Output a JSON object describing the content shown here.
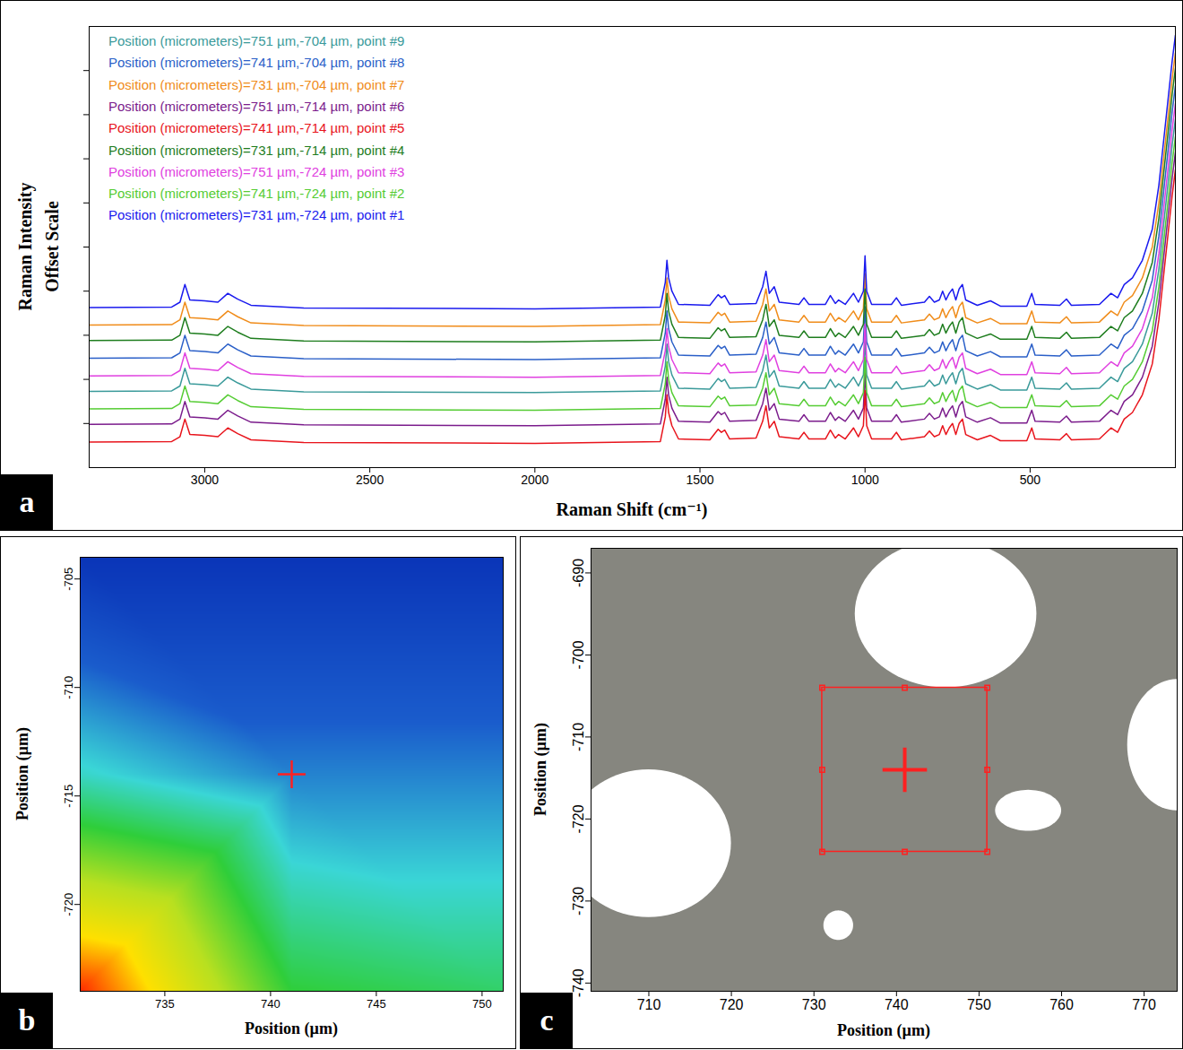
{
  "chart_data": [
    {
      "type": "line",
      "panel": "a",
      "xlabel": "Raman Shift (cm⁻¹)",
      "ylabel": "Raman Intensity\nOffset Scale",
      "xlim": [
        3350,
        60
      ],
      "xticks": [
        3000,
        2500,
        2000,
        1500,
        1000,
        500
      ],
      "ylim": [
        0,
        100
      ],
      "yticks": [
        10,
        20,
        30,
        40,
        50,
        60,
        70,
        80,
        90
      ],
      "tick_labels": "x",
      "legend": "top-left",
      "x": [
        3350,
        3100,
        3075,
        3060,
        3045,
        3000,
        2960,
        2930,
        2900,
        2860,
        2700,
        2000,
        1620,
        1605,
        1600,
        1595,
        1585,
        1565,
        1470,
        1445,
        1435,
        1425,
        1410,
        1330,
        1310,
        1300,
        1290,
        1275,
        1260,
        1200,
        1185,
        1170,
        1120,
        1105,
        1090,
        1080,
        1060,
        1035,
        1020,
        1005,
        1000,
        995,
        980,
        920,
        905,
        890,
        820,
        805,
        790,
        775,
        765,
        755,
        745,
        735,
        725,
        715,
        705,
        695,
        660,
        620,
        590,
        510,
        495,
        485,
        410,
        390,
        375,
        290,
        255,
        235,
        215,
        190,
        160,
        130,
        110,
        90,
        70,
        60
      ],
      "series": [
        {
          "name": "Position (micrometers)=751 µm,-704 µm, point #9",
          "color": "#3a9a9a",
          "values": [
            17.3,
            17.4,
            18.5,
            22.5,
            19,
            18.8,
            18.5,
            20.5,
            19.2,
            17.8,
            17.2,
            17,
            17.4,
            23,
            28,
            24,
            21,
            18,
            17.8,
            20.2,
            19.5,
            20,
            18,
            18.2,
            22,
            25.5,
            20.5,
            22,
            18.5,
            18,
            19.5,
            18,
            18,
            20,
            18.2,
            19,
            18,
            20.5,
            18.5,
            21,
            29,
            21,
            18,
            18,
            19.5,
            17.8,
            18.5,
            19.8,
            18.5,
            19,
            21,
            19,
            20.5,
            21.5,
            19,
            21.5,
            22.5,
            19,
            17.8,
            18.8,
            17.6,
            17.6,
            20.5,
            18,
            17.8,
            19.2,
            17.8,
            18,
            20.5,
            19.5,
            22.5,
            24,
            28,
            35,
            45,
            59,
            73,
            79
          ]
        },
        {
          "name": "Position (micrometers)=741 µm,-704 µm, point #8",
          "color": "#2a5fc8",
          "values": [
            24.8,
            24.9,
            26,
            30,
            26.5,
            26.3,
            26,
            28,
            26.7,
            25.3,
            24.7,
            24.5,
            24.9,
            30.5,
            35.5,
            31.5,
            28.5,
            25.5,
            25.3,
            27.7,
            27,
            27.5,
            25.5,
            25.7,
            29.5,
            33,
            28,
            29.5,
            26,
            25.5,
            27,
            25.5,
            25.5,
            27.5,
            25.7,
            26.5,
            25.5,
            28,
            26,
            28.5,
            36.5,
            28.5,
            25.5,
            25.5,
            27,
            25.3,
            26,
            27.3,
            26,
            26.5,
            28.5,
            26.5,
            28,
            29,
            26.5,
            29,
            30,
            26.5,
            25.3,
            26.3,
            25.1,
            25.1,
            28,
            25.5,
            25.3,
            26.7,
            25.3,
            25.5,
            28,
            27,
            30,
            31.5,
            35.5,
            42.5,
            52.5,
            66.5,
            80.5,
            86.5
          ]
        },
        {
          "name": "Position (micrometers)=731 µm,-704 µm, point #7",
          "color": "#f08c1a",
          "values": [
            32.3,
            32.4,
            33.5,
            37.5,
            34,
            33.8,
            33.5,
            35.5,
            34.2,
            32.8,
            32.2,
            32,
            32.4,
            38,
            43,
            39,
            36,
            33,
            32.8,
            35.2,
            34.5,
            35,
            33,
            33.2,
            37,
            40.5,
            35.5,
            37,
            33.5,
            33,
            34.5,
            33,
            33,
            35,
            33.2,
            34,
            33,
            35.5,
            33.5,
            36,
            44,
            36,
            33,
            33,
            34.5,
            32.8,
            33.5,
            34.8,
            33.5,
            34,
            36,
            34,
            35.5,
            36.5,
            34,
            36.5,
            37.5,
            34,
            32.8,
            33.8,
            32.6,
            32.6,
            35.5,
            33,
            32.8,
            34.2,
            32.8,
            33,
            35.5,
            34.5,
            37.5,
            39,
            43,
            50,
            60,
            74,
            88,
            94
          ]
        },
        {
          "name": "Position (micrometers)=751 µm,-714 µm, point #6",
          "color": "#7b1c8c",
          "values": [
            9.8,
            9.9,
            11,
            15,
            11.5,
            11.3,
            11,
            13,
            11.7,
            10.3,
            9.7,
            9.5,
            9.9,
            15.5,
            20.5,
            16.5,
            13.5,
            10.5,
            10.3,
            12.7,
            12,
            12.5,
            10.5,
            10.7,
            14.5,
            18,
            13,
            14.5,
            11,
            10.5,
            12,
            10.5,
            10.5,
            12.5,
            10.7,
            11.5,
            10.5,
            13,
            11,
            13.5,
            21.5,
            13.5,
            10.5,
            10.5,
            12,
            10.3,
            11,
            12.3,
            11,
            11.5,
            13.5,
            11.5,
            13,
            14,
            11.5,
            14,
            15,
            11.5,
            10.3,
            11.3,
            10.1,
            10.1,
            13,
            10.5,
            10.3,
            11.7,
            10.3,
            10.5,
            13,
            12,
            15,
            16.5,
            20.5,
            27.5,
            37.5,
            51.5,
            65.5,
            71.5
          ]
        },
        {
          "name": "Position (micrometers)=741 µm,-714 µm, point #5",
          "color": "#e8141c",
          "values": [
            5.8,
            5.9,
            7,
            11,
            7.5,
            7.3,
            7,
            9,
            7.7,
            6.3,
            5.7,
            5.5,
            5.9,
            11.5,
            16.5,
            12.5,
            9.5,
            6.5,
            6.3,
            8.7,
            8,
            8.5,
            6.5,
            6.7,
            10.5,
            14,
            9,
            10.5,
            7,
            6.5,
            8,
            6.5,
            6.5,
            8.5,
            6.7,
            7.5,
            6.5,
            9,
            7,
            9.5,
            17.5,
            9.5,
            6.5,
            6.5,
            8,
            6.3,
            7,
            8.3,
            7,
            7.5,
            9.5,
            7.5,
            9,
            10,
            7.5,
            10,
            11,
            7.5,
            6.3,
            7.3,
            6.1,
            6.1,
            9,
            6.5,
            6.3,
            7.7,
            6.3,
            6.5,
            9,
            8,
            11,
            12.5,
            16.5,
            23.5,
            33.5,
            47.5,
            61.5,
            67.5
          ]
        },
        {
          "name": "Position (micrometers)=731 µm,-714 µm, point #4",
          "color": "#1e7d1e",
          "values": [
            28.8,
            28.9,
            30,
            34,
            30.5,
            30.3,
            30,
            32,
            30.7,
            29.3,
            28.7,
            28.5,
            28.9,
            34.5,
            39.5,
            35.5,
            32.5,
            29.5,
            29.3,
            31.7,
            31,
            31.5,
            29.5,
            29.7,
            33.5,
            37,
            32,
            33.5,
            30,
            29.5,
            31,
            29.5,
            29.5,
            31.5,
            29.7,
            30.5,
            29.5,
            32,
            30,
            32.5,
            40.5,
            32.5,
            29.5,
            29.5,
            31,
            29.3,
            30,
            31.3,
            30,
            30.5,
            32.5,
            30.5,
            32,
            33,
            30.5,
            33,
            34,
            30.5,
            29.3,
            30.3,
            29.1,
            29.1,
            32,
            29.5,
            29.3,
            30.7,
            29.3,
            29.5,
            32,
            31,
            34,
            35.5,
            39.5,
            46.5,
            56.5,
            70.5,
            84.5,
            90.5
          ]
        },
        {
          "name": "Position (micrometers)=751 µm,-724 µm, point #3",
          "color": "#e040e0",
          "values": [
            20.8,
            20.9,
            22,
            26,
            22.5,
            22.3,
            22,
            24,
            22.7,
            21.3,
            20.7,
            20.5,
            20.9,
            26.5,
            31.5,
            27.5,
            24.5,
            21.5,
            21.3,
            23.7,
            23,
            23.5,
            21.5,
            21.7,
            25.5,
            29,
            24,
            25.5,
            22,
            21.5,
            23,
            21.5,
            21.5,
            23.5,
            21.7,
            22.5,
            21.5,
            24,
            22,
            24.5,
            32.5,
            24.5,
            21.5,
            21.5,
            23,
            21.3,
            22,
            23.3,
            22,
            22.5,
            24.5,
            22.5,
            24,
            25,
            22.5,
            25,
            26,
            22.5,
            21.3,
            22.3,
            21.1,
            21.1,
            24,
            21.5,
            21.3,
            22.7,
            21.3,
            21.5,
            24,
            23,
            26,
            27.5,
            31.5,
            38.5,
            48.5,
            62.5,
            76.5,
            82.5
          ]
        },
        {
          "name": "Position (micrometers)=741 µm,-724 µm, point #2",
          "color": "#55cc33",
          "values": [
            13.3,
            13.4,
            14.5,
            18.5,
            15,
            14.8,
            14.5,
            16.5,
            15.2,
            13.8,
            13.2,
            13,
            13.4,
            19,
            24,
            20,
            17,
            14,
            13.8,
            16.2,
            15.5,
            16,
            14,
            14.2,
            18,
            21.5,
            16.5,
            18,
            14.5,
            14,
            15.5,
            14,
            14,
            16,
            14.2,
            15,
            14,
            16.5,
            14.5,
            17,
            25,
            17,
            14,
            14,
            15.5,
            13.8,
            14.5,
            15.8,
            14.5,
            15,
            17,
            15,
            16.5,
            17.5,
            15,
            17.5,
            18.5,
            15,
            13.8,
            14.8,
            13.6,
            13.6,
            16.5,
            14,
            13.8,
            15.2,
            13.8,
            14,
            16.5,
            15.5,
            18.5,
            20,
            24,
            31,
            41,
            55,
            69,
            75
          ]
        },
        {
          "name": "Position (micrometers)=731 µm,-724 µm, point #1",
          "color": "#1a1aee",
          "values": [
            36.3,
            36.4,
            37.5,
            41.5,
            38,
            37.8,
            37.5,
            39.5,
            38.2,
            36.8,
            36.2,
            36,
            36.4,
            42,
            47,
            43,
            40,
            37,
            36.8,
            39.2,
            38.5,
            39,
            37,
            37.2,
            41,
            44.5,
            39.5,
            41,
            37.5,
            37,
            38.5,
            37,
            37,
            39,
            37.2,
            38,
            37,
            39.5,
            37.5,
            40,
            48,
            40,
            37,
            37,
            38.5,
            36.8,
            37.5,
            38.8,
            37.5,
            38,
            40,
            38,
            39.5,
            40.5,
            38,
            40.5,
            41.5,
            38,
            36.8,
            37.8,
            36.6,
            36.6,
            39.5,
            37,
            36.8,
            38.2,
            36.8,
            37,
            39.5,
            38.5,
            41.5,
            43,
            47,
            54,
            64,
            78,
            92,
            98
          ]
        }
      ]
    },
    {
      "type": "heatmap",
      "panel": "b",
      "xlabel": "Position (µm)",
      "ylabel": "Position (µm)",
      "xlim": [
        731,
        751
      ],
      "xticks": [
        735,
        740,
        745,
        750
      ],
      "ylim": [
        -724,
        -704
      ],
      "yticks": [
        -705,
        -710,
        -715,
        -720
      ],
      "cells": [
        {
          "x": 731,
          "y": -724,
          "value": 100
        },
        {
          "x": 741,
          "y": -724,
          "value": 50
        },
        {
          "x": 751,
          "y": -724,
          "value": 45
        },
        {
          "x": 731,
          "y": -714,
          "value": 35
        },
        {
          "x": 741,
          "y": -714,
          "value": 22
        },
        {
          "x": 751,
          "y": -714,
          "value": 22
        },
        {
          "x": 731,
          "y": -704,
          "value": 0
        },
        {
          "x": 741,
          "y": -704,
          "value": 0
        },
        {
          "x": 751,
          "y": -704,
          "value": 0
        }
      ],
      "zlim": [
        0,
        100
      ],
      "colors": [
        "#0a35b8",
        "#1a5ccc",
        "#3ad6d6",
        "#2fce3a",
        "#b8e020",
        "#ffe000",
        "#ff2a00"
      ],
      "marker": "plus",
      "cursor": {
        "x": 741,
        "y": -714,
        "color": "#ff2020"
      }
    },
    {
      "type": "image",
      "panel": "c",
      "xlabel": "Position (µm)",
      "ylabel": "Position (µm)",
      "xlim": [
        703,
        774
      ],
      "xticks": [
        710,
        720,
        730,
        740,
        750,
        760,
        770
      ],
      "ylim": [
        -741,
        -687
      ],
      "yticks": [
        -690,
        -700,
        -710,
        -720,
        -730,
        -740
      ],
      "color": "#86867f",
      "bright_regions": [
        {
          "x": 746,
          "y": -695,
          "rx": 11,
          "ry": 9
        },
        {
          "x": 710,
          "y": -723,
          "rx": 10,
          "ry": 9
        },
        {
          "x": 756,
          "y": -719,
          "rx": 4,
          "ry": 2.5
        },
        {
          "x": 774,
          "y": -711,
          "rx": 6,
          "ry": 8
        },
        {
          "x": 733,
          "y": -733,
          "rx": 1.8,
          "ry": 1.8
        }
      ],
      "map_region": {
        "x1": 731,
        "x2": 751,
        "y1": -724,
        "y2": -704
      },
      "marker": "plus",
      "cursor": {
        "x": 741,
        "y": -714,
        "color": "#ff2020"
      }
    }
  ]
}
